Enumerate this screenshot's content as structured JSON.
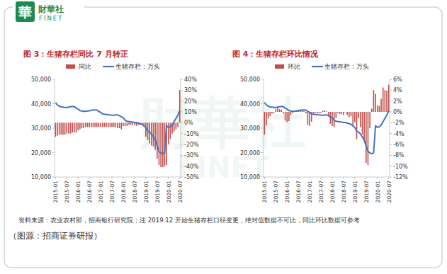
{
  "header": {
    "logo_mark": "華",
    "logo_name": "財華社",
    "logo_en": "FINET"
  },
  "source_note": "资料来源：农业农村部，招商银行研究院；注 2019.12 开始生猪存栏口径变更，绝对值数据不可比，同比环比数据可参考",
  "image_credit": "（图源：招商证券研报）",
  "chart_data": [
    {
      "type": "bar",
      "title": "图 3：生猪存栏同比 7 月转正",
      "legend": "top",
      "grid": false,
      "categories": [
        "2015-01",
        null,
        null,
        null,
        null,
        null,
        "2015-07",
        null,
        null,
        null,
        null,
        null,
        "2016-01",
        null,
        null,
        null,
        null,
        null,
        "2016-07",
        null,
        null,
        null,
        null,
        null,
        "2017-01",
        null,
        null,
        null,
        null,
        null,
        "2017-07",
        null,
        null,
        null,
        null,
        null,
        "2018-01",
        null,
        null,
        null,
        null,
        null,
        "2018-07",
        null,
        null,
        null,
        null,
        null,
        "2019-01",
        null,
        null,
        null,
        null,
        null,
        "2019-07",
        null,
        null,
        null,
        null,
        null,
        "2020-01",
        null,
        null,
        null,
        null,
        null,
        "2020-07"
      ],
      "series": [
        {
          "name": "同比",
          "type": "bar",
          "axis": "y2",
          "color": "#c0504d",
          "values": [
            -13,
            -12,
            -11,
            -11,
            -11,
            -11,
            -10,
            -10,
            -10,
            -9,
            -9,
            -9,
            -7,
            -6,
            -5,
            -5,
            -4,
            -4,
            -4,
            -4,
            -4,
            -4,
            -4,
            -4,
            -4,
            -4,
            -4,
            -4,
            -4,
            -4,
            -4,
            -4,
            -4,
            -5,
            -5,
            -6,
            -3,
            -3,
            -3,
            -2,
            -2,
            -2,
            -2,
            -3,
            -2,
            -2,
            -2,
            -3,
            -13,
            -16,
            -19,
            -21,
            -22,
            -25,
            -33,
            -39,
            -41,
            -41,
            -40,
            -39,
            -20,
            -15,
            -10,
            -8,
            -6,
            -4,
            30
          ]
        },
        {
          "name": "生猪存栏：万头",
          "type": "line",
          "axis": "y",
          "color": "#4472c4",
          "values": [
            40500,
            39500,
            39000,
            38700,
            38600,
            38500,
            38400,
            38600,
            38800,
            38900,
            38800,
            38200,
            37800,
            37200,
            37000,
            36900,
            36900,
            37000,
            37100,
            37300,
            37400,
            37500,
            37400,
            36800,
            36500,
            35800,
            35700,
            35600,
            35500,
            35400,
            35300,
            35300,
            35400,
            35400,
            35100,
            34600,
            34300,
            33200,
            32800,
            32700,
            32600,
            32500,
            32300,
            32300,
            32100,
            31800,
            31600,
            30900,
            30300,
            28800,
            28400,
            27600,
            26400,
            25100,
            22700,
            20500,
            19900,
            19500,
            19900,
            31000,
            30300,
            30600,
            31300,
            32700,
            34000,
            35300,
            37100
          ]
        }
      ],
      "ylim": [
        10000,
        50000
      ],
      "yticks": [
        {
          "value": 10000,
          "label": "10,000"
        },
        {
          "value": 20000,
          "label": "20,000"
        },
        {
          "value": 30000,
          "label": "30,000"
        },
        {
          "value": 40000,
          "label": "40,000"
        },
        {
          "value": 50000,
          "label": "50,000"
        }
      ],
      "y2lim": [
        -50,
        40
      ],
      "y2ticks": [
        {
          "value": -50,
          "label": "-50%"
        },
        {
          "value": -40,
          "label": "-40%"
        },
        {
          "value": -30,
          "label": "-30%"
        },
        {
          "value": -20,
          "label": "-20%"
        },
        {
          "value": -10,
          "label": "-10%"
        },
        {
          "value": 0,
          "label": "0%"
        },
        {
          "value": 10,
          "label": "10%"
        },
        {
          "value": 20,
          "label": "20%"
        },
        {
          "value": 30,
          "label": "30%"
        },
        {
          "value": 40,
          "label": "40%"
        }
      ]
    },
    {
      "type": "bar",
      "title": "图 4：生猪存栏环比情况",
      "legend": "top",
      "grid": false,
      "categories": [
        "2015-01",
        null,
        null,
        null,
        null,
        null,
        "2015-07",
        null,
        null,
        null,
        null,
        null,
        "2016-01",
        null,
        null,
        null,
        null,
        null,
        "2016-07",
        null,
        null,
        null,
        null,
        null,
        "2017-01",
        null,
        null,
        null,
        null,
        null,
        "2017-07",
        null,
        null,
        null,
        null,
        null,
        "2018-01",
        null,
        null,
        null,
        null,
        null,
        "2018-07",
        null,
        null,
        null,
        null,
        null,
        "2019-01",
        null,
        null,
        null,
        null,
        null,
        "2019-07",
        null,
        null,
        null,
        null,
        null,
        "2020-01",
        null,
        null,
        null,
        null,
        null,
        "2020-07"
      ],
      "series": [
        {
          "name": "环比",
          "type": "bar",
          "axis": "y2",
          "color": "#c0504d",
          "values": [
            -4.2,
            -2.5,
            -1.2,
            -0.8,
            -0.3,
            -0.2,
            0.5,
            0.8,
            0.5,
            0.4,
            -0.3,
            -1.6,
            -1.9,
            -1.7,
            -0.6,
            -0.2,
            0.1,
            0.3,
            0.4,
            0.4,
            0.3,
            0.2,
            -0.3,
            -2.4,
            -2.6,
            -1.8,
            -0.3,
            -0.2,
            -0.3,
            -0.3,
            -0.2,
            0.2,
            0.3,
            0.1,
            -0.8,
            -2.2,
            -2.6,
            -2.8,
            -1.1,
            -0.2,
            -0.4,
            -0.4,
            -0.6,
            -0.1,
            -0.6,
            -1.0,
            -0.8,
            -2.5,
            -1.9,
            -5.0,
            -1.2,
            -2.8,
            -4.2,
            -5.1,
            -9.4,
            -9.8,
            -3.0,
            0.6,
            4.0,
            3.3,
            1.2,
            1.1,
            2.4,
            4.5,
            4.0,
            3.9,
            5.0
          ]
        },
        {
          "name": "生猪存栏：万头",
          "type": "line",
          "axis": "y",
          "color": "#4472c4",
          "values": [
            40500,
            39500,
            39000,
            38700,
            38600,
            38500,
            38400,
            38600,
            38800,
            38900,
            38800,
            38200,
            37800,
            37200,
            37000,
            36900,
            36900,
            37000,
            37100,
            37300,
            37400,
            37500,
            37400,
            36800,
            36500,
            35800,
            35700,
            35600,
            35500,
            35400,
            35300,
            35300,
            35400,
            35400,
            35100,
            34600,
            34300,
            33200,
            32800,
            32700,
            32600,
            32500,
            32300,
            32300,
            32100,
            31800,
            31600,
            30900,
            30300,
            28800,
            28400,
            27600,
            26400,
            25100,
            22700,
            20500,
            19900,
            19500,
            19900,
            31000,
            30300,
            30600,
            31300,
            32700,
            34000,
            35300,
            37100
          ]
        }
      ],
      "ylim": [
        10000,
        50000
      ],
      "yticks": [
        {
          "value": 10000,
          "label": "10,000"
        },
        {
          "value": 20000,
          "label": "20,000"
        },
        {
          "value": 30000,
          "label": "30,000"
        },
        {
          "value": 40000,
          "label": "40,000"
        },
        {
          "value": 50000,
          "label": "50,000"
        }
      ],
      "y2lim": [
        -12,
        6
      ],
      "y2ticks": [
        {
          "value": -12,
          "label": "-12%"
        },
        {
          "value": -10,
          "label": "-10%"
        },
        {
          "value": -8,
          "label": "-8%"
        },
        {
          "value": -6,
          "label": "-6%"
        },
        {
          "value": -4,
          "label": "-4%"
        },
        {
          "value": -2,
          "label": "-2%"
        },
        {
          "value": 0,
          "label": "0%"
        },
        {
          "value": 2,
          "label": "2%"
        },
        {
          "value": 4,
          "label": "4%"
        },
        {
          "value": 6,
          "label": "6%"
        }
      ]
    }
  ]
}
